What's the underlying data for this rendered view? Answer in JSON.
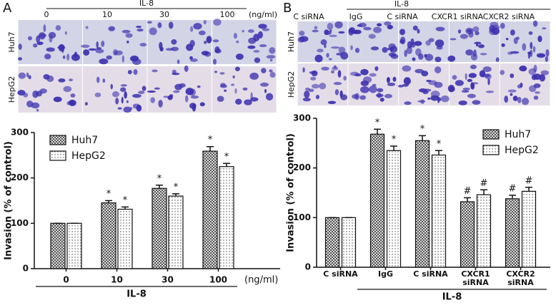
{
  "panels": [
    {
      "label": "A",
      "title": "IL-8",
      "columns": [
        "0",
        "10",
        "30",
        "100"
      ],
      "unit": "(ng/ml)",
      "rows": [
        "Huh7",
        "HepG2"
      ]
    },
    {
      "label": "B",
      "title": "IL-8",
      "columns": [
        "C siRNA",
        "IgG",
        "C siRNA",
        "CXCR1 siRNA",
        "CXCR2 siRNA"
      ],
      "rows": [
        "Huh7",
        "HepG2"
      ]
    }
  ],
  "chart_data": [
    {
      "type": "bar",
      "ylabel": "Invasion (% of control)",
      "xlabel": "IL-8",
      "xunit": "(ng/ml)",
      "categories": [
        "0",
        "10",
        "30",
        "100"
      ],
      "series": [
        {
          "name": "Huh7",
          "pattern": "checker",
          "color": "#555555",
          "values": [
            100,
            145,
            177,
            259
          ],
          "errors": [
            0,
            5,
            7,
            10
          ],
          "significance": [
            null,
            "*",
            "*",
            "*"
          ]
        },
        {
          "name": "HepG2",
          "pattern": "dots",
          "color": "#444444",
          "values": [
            100,
            131,
            160,
            225
          ],
          "errors": [
            0,
            5,
            5,
            7
          ],
          "significance": [
            null,
            "*",
            "*",
            "*"
          ]
        }
      ],
      "ylim": [
        0,
        300
      ],
      "yticks": [
        0,
        100,
        200,
        300
      ],
      "legend": "upper left"
    },
    {
      "type": "bar",
      "ylabel": "Invasion (% of control)",
      "xlabel": "IL-8",
      "categories": [
        "C siRNA",
        "IgG",
        "C siRNA",
        "CXCR1 siRNA",
        "CXCR2 siRNA"
      ],
      "series": [
        {
          "name": "Huh7",
          "pattern": "checker",
          "color": "#555555",
          "values": [
            100,
            268,
            255,
            132,
            138
          ],
          "errors": [
            0,
            10,
            10,
            8,
            7
          ],
          "significance": [
            null,
            "*",
            "*",
            "#",
            "#"
          ]
        },
        {
          "name": "HepG2",
          "pattern": "dots",
          "color": "#444444",
          "values": [
            100,
            235,
            226,
            146,
            153
          ],
          "errors": [
            0,
            9,
            9,
            10,
            8
          ],
          "significance": [
            null,
            "*",
            "*",
            "#",
            "#"
          ]
        }
      ],
      "ylim": [
        0,
        300
      ],
      "yticks": [
        0,
        100,
        200,
        300
      ],
      "legend": "upper right"
    }
  ]
}
